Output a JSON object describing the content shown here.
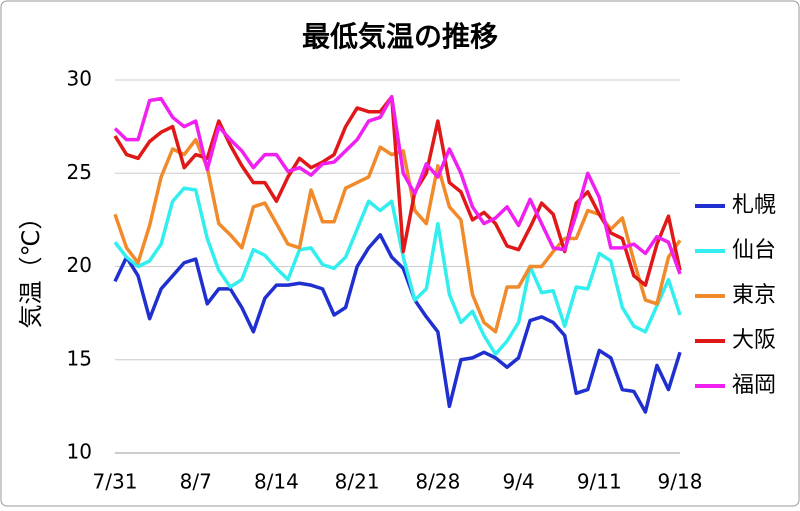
{
  "chart_data": {
    "type": "line",
    "title": "最低気温の推移",
    "y_label": "気温（℃）",
    "categories": [
      "7/31",
      null,
      null,
      null,
      null,
      null,
      null,
      "8/7",
      null,
      null,
      null,
      null,
      null,
      null,
      "8/14",
      null,
      null,
      null,
      null,
      null,
      null,
      "8/21",
      null,
      null,
      null,
      null,
      null,
      null,
      "8/28",
      null,
      null,
      null,
      null,
      null,
      null,
      "9/4",
      null,
      null,
      null,
      null,
      null,
      null,
      "9/11",
      null,
      null,
      null,
      null,
      null,
      null,
      "9/18"
    ],
    "ylim": [
      10,
      30
    ],
    "yticks": [
      10,
      15,
      20,
      25,
      30
    ],
    "grid": true,
    "legend": "right",
    "series": [
      {
        "name": "札幌",
        "color": "#1f2fd0",
        "values": [
          19.2,
          20.5,
          19.5,
          17.2,
          18.8,
          19.5,
          20.2,
          20.4,
          18.0,
          18.8,
          18.8,
          17.8,
          16.5,
          18.3,
          19.0,
          19.0,
          19.1,
          19.0,
          18.8,
          17.4,
          17.8,
          20.0,
          21.0,
          21.7,
          20.5,
          19.9,
          18.2,
          17.3,
          16.5,
          12.5,
          15.0,
          15.1,
          15.4,
          15.1,
          14.6,
          15.1,
          17.1,
          17.3,
          17.0,
          16.3,
          13.2,
          13.4,
          15.5,
          15.1,
          13.4,
          13.3,
          12.2,
          14.7,
          13.4,
          15.4
        ]
      },
      {
        "name": "仙台",
        "color": "#33eeee",
        "values": [
          21.3,
          20.5,
          20.0,
          20.3,
          21.2,
          23.5,
          24.2,
          24.1,
          21.5,
          19.8,
          18.9,
          19.3,
          20.9,
          20.6,
          19.9,
          19.3,
          20.9,
          21.0,
          20.1,
          19.9,
          20.5,
          22.0,
          23.5,
          23.0,
          23.5,
          20.5,
          18.2,
          18.8,
          22.3,
          18.5,
          17.0,
          17.6,
          16.3,
          15.3,
          16.0,
          17.0,
          20.0,
          18.6,
          18.7,
          16.8,
          18.9,
          18.8,
          20.7,
          20.3,
          17.8,
          16.8,
          16.5,
          17.9,
          19.3,
          17.4
        ]
      },
      {
        "name": "東京",
        "color": "#f08a2a",
        "values": [
          22.8,
          21.0,
          20.2,
          22.2,
          24.8,
          26.3,
          26.0,
          26.8,
          25.3,
          22.3,
          21.7,
          21.0,
          23.2,
          23.4,
          22.3,
          21.2,
          21.0,
          24.1,
          22.4,
          22.4,
          24.2,
          24.5,
          24.8,
          26.4,
          26.0,
          26.2,
          23.0,
          22.3,
          25.4,
          23.2,
          22.5,
          18.5,
          17.0,
          16.5,
          18.9,
          18.9,
          20.0,
          20.0,
          20.8,
          21.5,
          21.5,
          23.0,
          22.8,
          22.0,
          22.6,
          20.3,
          18.2,
          18.0,
          20.5,
          21.4
        ]
      },
      {
        "name": "大阪",
        "color": "#e01818",
        "values": [
          27.0,
          26.0,
          25.8,
          26.7,
          27.2,
          27.5,
          25.3,
          26.0,
          25.8,
          27.8,
          26.5,
          25.4,
          24.5,
          24.5,
          23.5,
          24.8,
          25.8,
          25.3,
          25.6,
          26.0,
          27.5,
          28.5,
          28.3,
          28.3,
          29.1,
          20.8,
          24.0,
          25.0,
          27.8,
          24.5,
          24.0,
          22.5,
          22.9,
          22.3,
          21.1,
          20.9,
          22.1,
          23.4,
          22.8,
          20.8,
          23.4,
          24.0,
          22.8,
          21.8,
          21.5,
          19.5,
          19.0,
          21.2,
          22.7,
          19.8
        ]
      },
      {
        "name": "福岡",
        "color": "#f020f0",
        "values": [
          27.4,
          26.8,
          26.8,
          28.9,
          29.0,
          28.0,
          27.5,
          27.8,
          25.2,
          27.5,
          26.8,
          26.2,
          25.3,
          26.0,
          26.0,
          25.1,
          25.3,
          24.9,
          25.5,
          25.6,
          26.2,
          26.8,
          27.8,
          28.0,
          29.1,
          25.0,
          23.9,
          25.5,
          24.8,
          26.3,
          25.0,
          23.2,
          22.3,
          22.6,
          23.2,
          22.2,
          23.6,
          22.3,
          21.0,
          20.9,
          22.8,
          25.0,
          23.7,
          21.0,
          21.0,
          21.2,
          20.7,
          21.6,
          21.3,
          19.6
        ]
      }
    ]
  }
}
